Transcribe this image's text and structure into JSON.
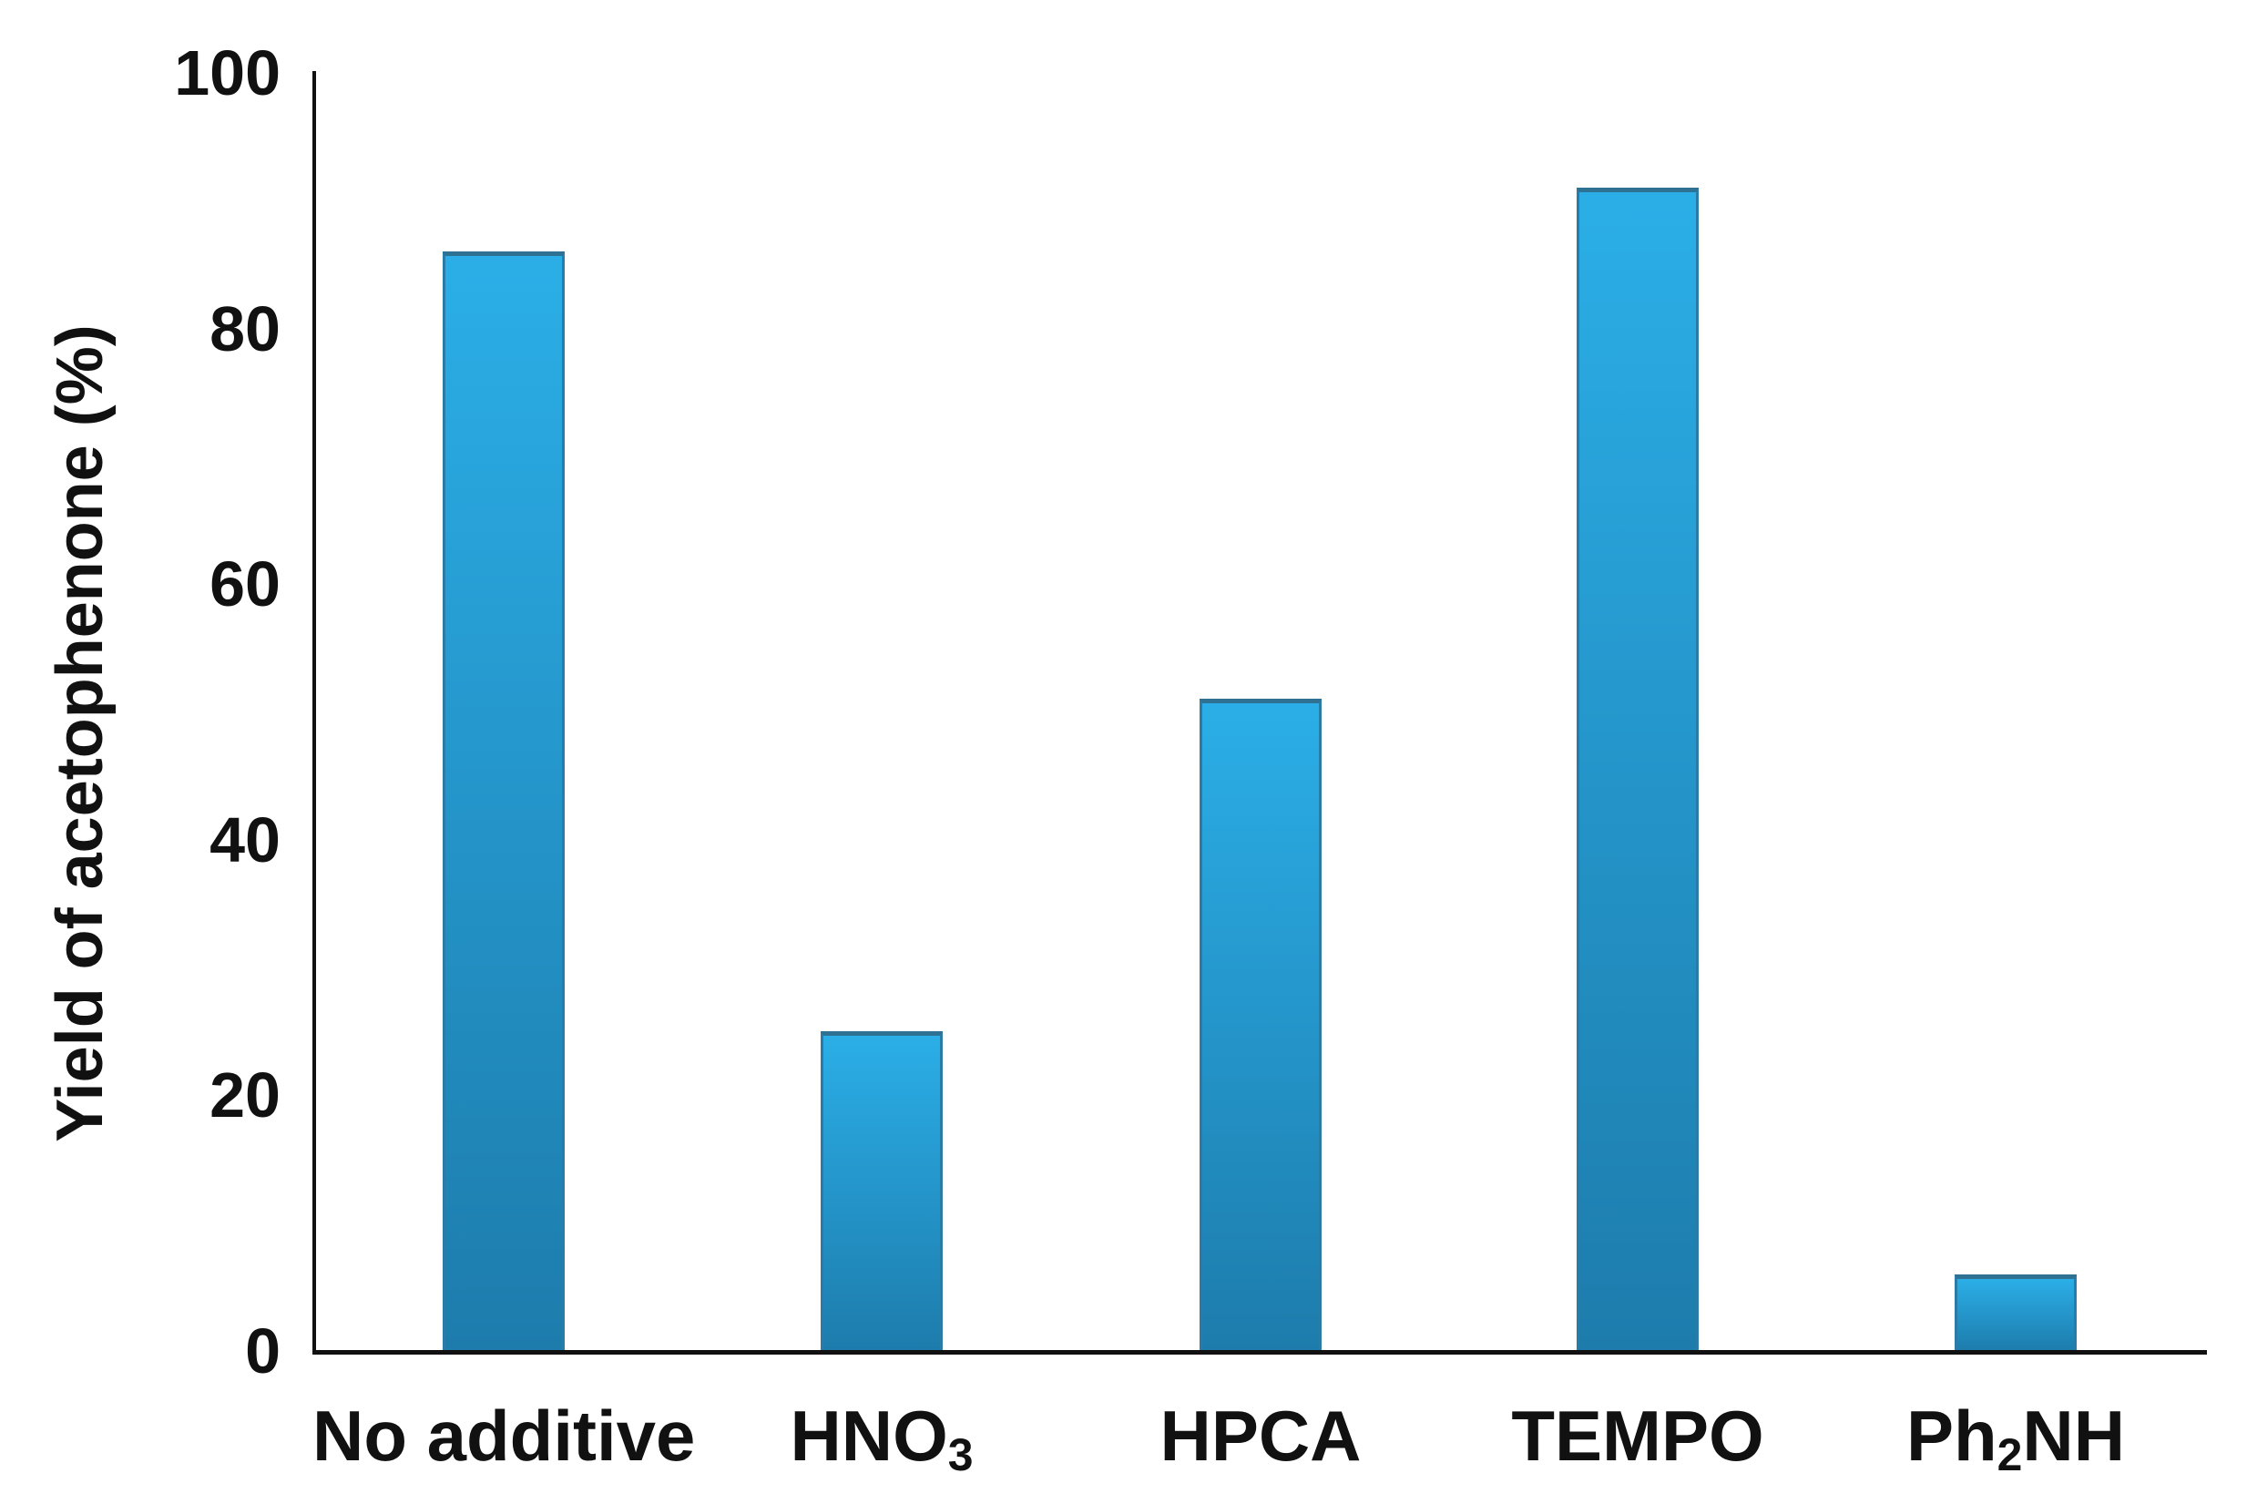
{
  "figure": {
    "background_color": "#ffffff",
    "text_color": "#111111",
    "axis_color": "#111111"
  },
  "chart_data": {
    "type": "bar",
    "title": "",
    "xlabel": "",
    "ylabel": "Yield of acetophenone (%)",
    "categories": [
      "No additive",
      "HNO3",
      "HPCA",
      "TEMPO",
      "Ph2NH"
    ],
    "categories_rich": [
      [
        {
          "t": "No additive"
        }
      ],
      [
        {
          "t": "HNO"
        },
        {
          "t": "3",
          "sub": true
        }
      ],
      [
        {
          "t": "HPCA"
        }
      ],
      [
        {
          "t": "TEMPO"
        }
      ],
      [
        {
          "t": "Ph"
        },
        {
          "t": "2",
          "sub": true
        },
        {
          "t": "NH"
        }
      ]
    ],
    "values": [
      86,
      25,
      51,
      91,
      6
    ],
    "ylim": [
      0,
      100
    ],
    "yticks": [
      0,
      20,
      40,
      60,
      80,
      100
    ],
    "grid": false,
    "legend": null,
    "bar_color_top": "#2baee7",
    "bar_color_bottom": "#1d7cac",
    "bar_edge_top_color": "#2e7193",
    "bar_edge_side_color": "#2a7ba6"
  }
}
